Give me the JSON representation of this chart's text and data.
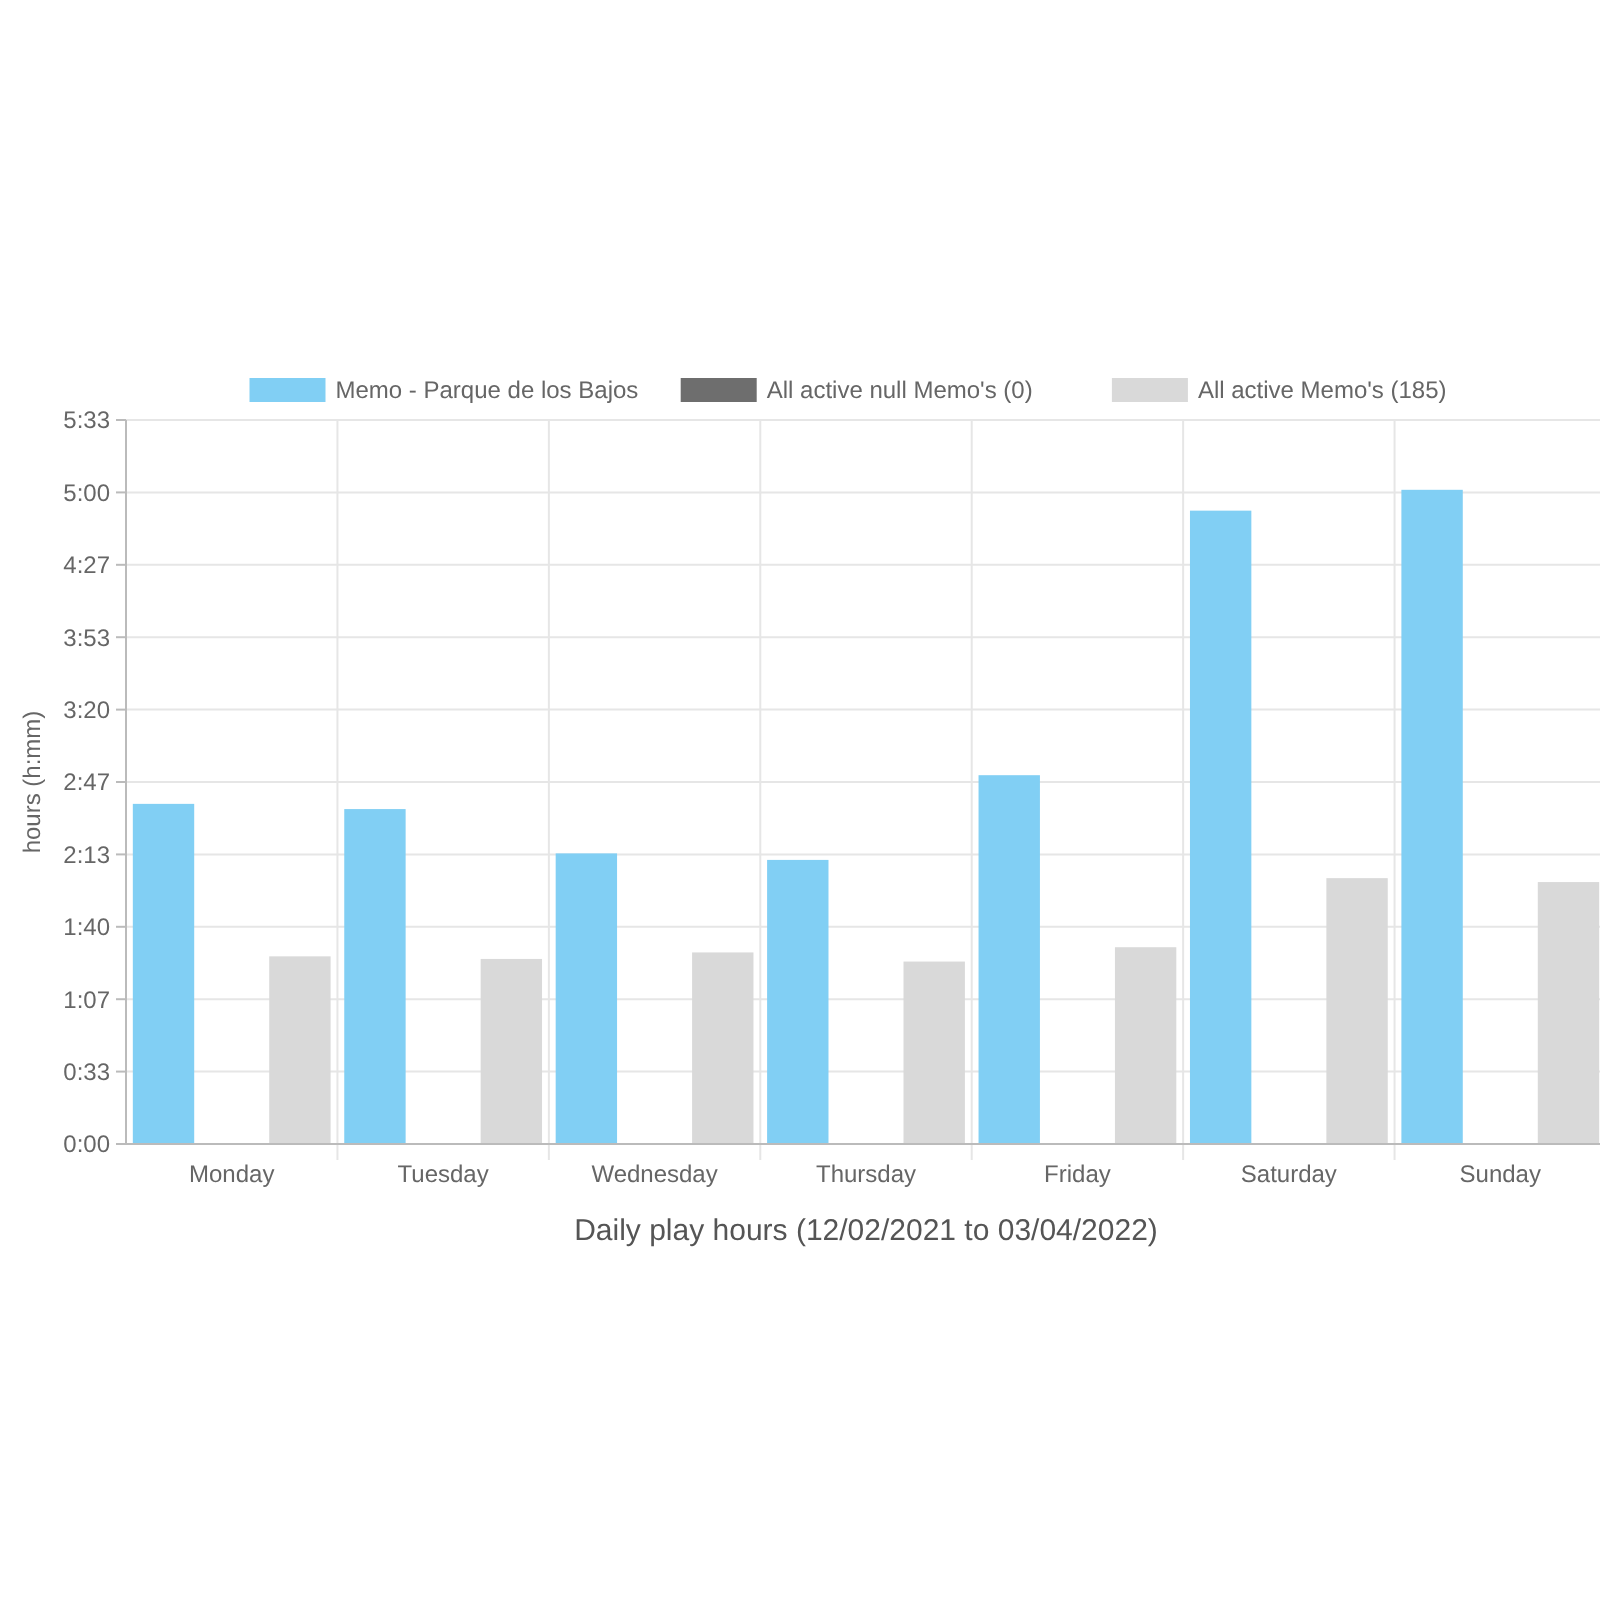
{
  "chart_data": {
    "type": "bar",
    "xlabel": "Daily play hours (12/02/2021 to 03/04/2022)",
    "ylabel": "hours (h:mm)",
    "categories": [
      "Monday",
      "Tuesday",
      "Wednesday",
      "Thursday",
      "Friday",
      "Saturday",
      "Sunday"
    ],
    "series": [
      {
        "name": "Memo - Parque de los Bajos",
        "color": "#81cff4",
        "values": [
          2.61,
          2.57,
          2.23,
          2.18,
          2.83,
          4.86,
          5.02
        ]
      },
      {
        "name": "All active null Memo's (0)",
        "color": "#6e6e6e",
        "values": [
          0,
          0,
          0,
          0,
          0,
          0,
          0
        ]
      },
      {
        "name": "All active Memo's (185)",
        "color": "#d9d9d9",
        "values": [
          1.44,
          1.42,
          1.47,
          1.4,
          1.51,
          2.04,
          2.01
        ]
      }
    ],
    "ylim": [
      0,
      5.5556
    ],
    "yticks": [
      {
        "value": 0,
        "label": "0:00"
      },
      {
        "value": 0.5556,
        "label": "0:33"
      },
      {
        "value": 1.1111,
        "label": "1:07"
      },
      {
        "value": 1.6667,
        "label": "1:40"
      },
      {
        "value": 2.2222,
        "label": "2:13"
      },
      {
        "value": 2.7778,
        "label": "2:47"
      },
      {
        "value": 3.3333,
        "label": "3:20"
      },
      {
        "value": 3.8889,
        "label": "3:53"
      },
      {
        "value": 4.4444,
        "label": "4:27"
      },
      {
        "value": 5,
        "label": "5:00"
      },
      {
        "value": 5.5556,
        "label": "5:33"
      }
    ],
    "grid": true,
    "legend": "top"
  }
}
